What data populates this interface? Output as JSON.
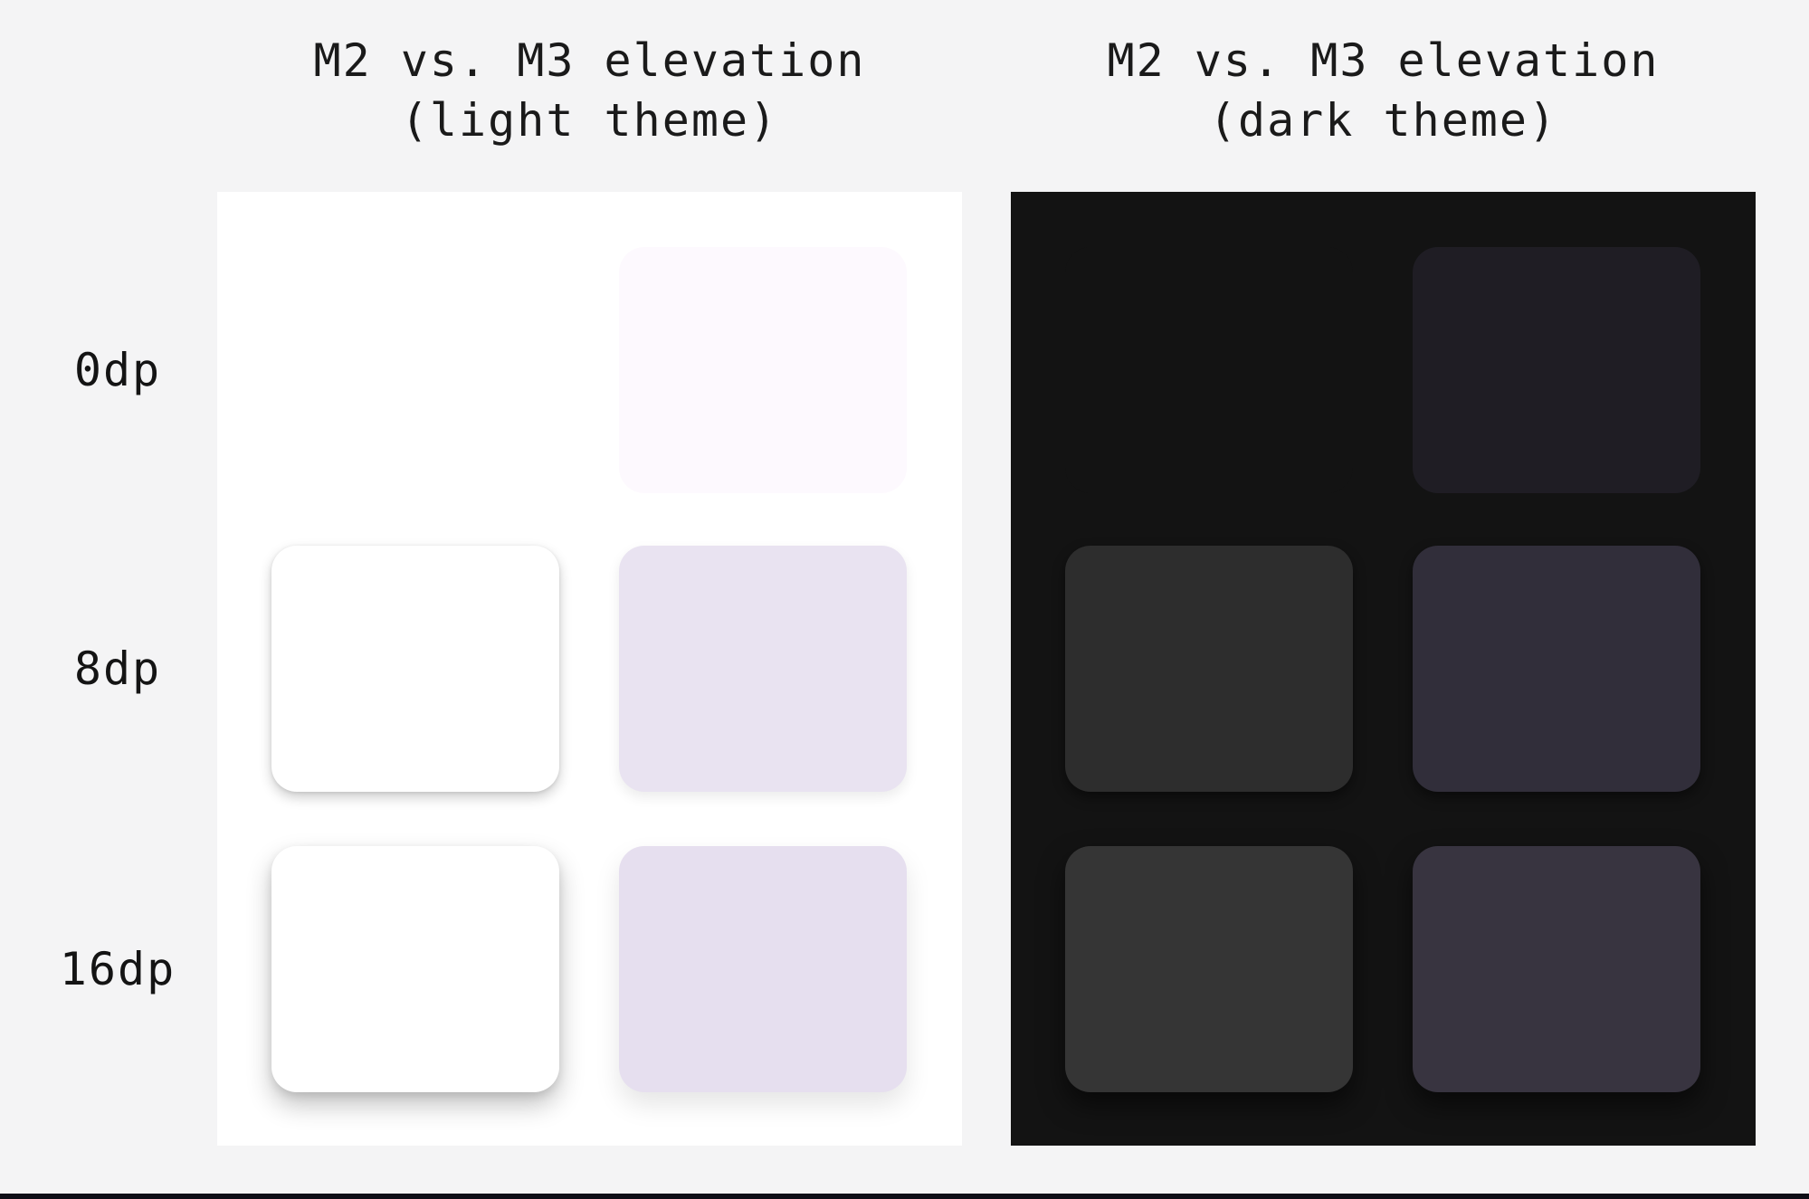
{
  "page": {
    "background": "#F4F4F5",
    "bottom_bar_color": "#0E0E16"
  },
  "row_labels": [
    "0dp",
    "8dp",
    "16dp"
  ],
  "panels": {
    "light": {
      "title": "M2 vs. M3 elevation",
      "subtitle": "(light theme)",
      "surface": "#FFFFFF",
      "cards": {
        "m2": [
          "#FFFFFF",
          "#FFFFFF",
          "#FFFFFF"
        ],
        "m3": [
          "#FDF9FE",
          "#E9E3F1",
          "#E6DFEF"
        ]
      }
    },
    "dark": {
      "title": "M2 vs. M3 elevation",
      "subtitle": "(dark theme)",
      "surface": "#131313",
      "cards": {
        "m2": [
          "#131313",
          "#2D2D2D",
          "#353535"
        ],
        "m3": [
          "#1F1D24",
          "#312E3A",
          "#383440"
        ]
      }
    }
  }
}
